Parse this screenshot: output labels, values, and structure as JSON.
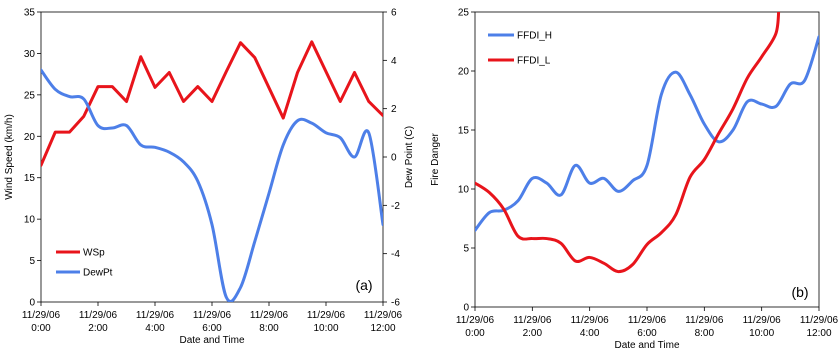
{
  "chart_data": [
    {
      "type": "line",
      "panel_label": "(a)",
      "xlabel": "Date and Time",
      "ylabel": "Wind Speed (km/h)",
      "y2label": "Dew Point (C)",
      "x_ticks": [
        {
          "hours": 0,
          "date": "11/29/06",
          "time": "0:00"
        },
        {
          "hours": 2,
          "date": "11/29/06",
          "time": "2:00"
        },
        {
          "hours": 4,
          "date": "11/29/06",
          "time": "4:00"
        },
        {
          "hours": 6,
          "date": "11/29/06",
          "time": "6:00"
        },
        {
          "hours": 8,
          "date": "11/29/06",
          "time": "8:00"
        },
        {
          "hours": 10,
          "date": "11/29/06",
          "time": "10:00"
        },
        {
          "hours": 12,
          "date": "11/29/06",
          "time": "12:00"
        }
      ],
      "xlim": [
        0,
        12
      ],
      "ylim": [
        0,
        35
      ],
      "y_ticks": [
        0,
        5,
        10,
        15,
        20,
        25,
        30,
        35
      ],
      "y2lim": [
        -6,
        6
      ],
      "y2_ticks": [
        -6,
        -4,
        -2,
        0,
        2,
        4,
        6
      ],
      "grid": false,
      "legend_position": "bottom-left",
      "series": [
        {
          "name": "WSp",
          "axis": "left",
          "color": "#e8141b",
          "smooth": false,
          "points": [
            [
              0,
              16.5
            ],
            [
              0.5,
              20.5
            ],
            [
              1,
              20.5
            ],
            [
              1.5,
              22.4
            ],
            [
              2,
              26
            ],
            [
              2.5,
              26
            ],
            [
              3,
              24.2
            ],
            [
              3.5,
              29.6
            ],
            [
              4,
              25.9
            ],
            [
              4.5,
              27.7
            ],
            [
              5,
              24.2
            ],
            [
              5.5,
              26
            ],
            [
              6,
              24.2
            ],
            [
              6.5,
              27.8
            ],
            [
              7,
              31.3
            ],
            [
              7.5,
              29.5
            ],
            [
              8.5,
              22.2
            ],
            [
              9,
              27.7
            ],
            [
              9.5,
              31.4
            ],
            [
              10.5,
              24.2
            ],
            [
              11,
              27.7
            ],
            [
              11.5,
              24.2
            ],
            [
              12,
              22.5
            ]
          ]
        },
        {
          "name": "DewPt",
          "axis": "right",
          "color": "#4d7fe8",
          "smooth": true,
          "points": [
            [
              0,
              3.6
            ],
            [
              0.5,
              2.8
            ],
            [
              1,
              2.5
            ],
            [
              1.5,
              2.4
            ],
            [
              2,
              1.3
            ],
            [
              2.5,
              1.2
            ],
            [
              3,
              1.3
            ],
            [
              3.5,
              0.5
            ],
            [
              4,
              0.4
            ],
            [
              4.5,
              0.2
            ],
            [
              5,
              -0.2
            ],
            [
              5.5,
              -1
            ],
            [
              6,
              -2.8
            ],
            [
              6.5,
              -5.8
            ],
            [
              7,
              -5.4
            ],
            [
              7.5,
              -3.5
            ],
            [
              8,
              -1.5
            ],
            [
              8.5,
              0.5
            ],
            [
              9,
              1.5
            ],
            [
              9.5,
              1.4
            ],
            [
              10,
              1
            ],
            [
              10.5,
              0.8
            ],
            [
              11,
              0
            ],
            [
              11.5,
              1
            ],
            [
              12,
              -2.8
            ]
          ]
        }
      ]
    },
    {
      "type": "line",
      "panel_label": "(b)",
      "xlabel": "Date and Time",
      "ylabel": "Fire Danger",
      "x_ticks": [
        {
          "hours": 0,
          "date": "11/29/06",
          "time": "0:00"
        },
        {
          "hours": 2,
          "date": "11/29/06",
          "time": "2:00"
        },
        {
          "hours": 4,
          "date": "11/29/06",
          "time": "4:00"
        },
        {
          "hours": 6,
          "date": "11/29/06",
          "time": "6:00"
        },
        {
          "hours": 8,
          "date": "11/29/06",
          "time": "8:00"
        },
        {
          "hours": 10,
          "date": "11/29/06",
          "time": "10:00"
        },
        {
          "hours": 12,
          "date": "11/29/06",
          "time": "12:00"
        }
      ],
      "xlim": [
        0,
        12
      ],
      "ylim": [
        0,
        25
      ],
      "y_ticks": [
        0,
        5,
        10,
        15,
        20,
        25
      ],
      "grid": false,
      "legend_position": "top-left",
      "series": [
        {
          "name": "FFDI_H",
          "color": "#4d7fe8",
          "smooth": true,
          "points": [
            [
              0,
              6.5
            ],
            [
              0.5,
              8
            ],
            [
              1,
              8.2
            ],
            [
              1.5,
              9
            ],
            [
              2,
              10.9
            ],
            [
              2.5,
              10.5
            ],
            [
              3,
              9.5
            ],
            [
              3.5,
              12
            ],
            [
              4,
              10.5
            ],
            [
              4.5,
              10.9
            ],
            [
              5,
              9.8
            ],
            [
              5.5,
              10.7
            ],
            [
              6,
              12
            ],
            [
              6.5,
              18
            ],
            [
              7,
              19.9
            ],
            [
              7.5,
              18
            ],
            [
              8,
              15.5
            ],
            [
              8.5,
              14
            ],
            [
              9,
              15
            ],
            [
              9.5,
              17.4
            ],
            [
              10,
              17.2
            ],
            [
              10.5,
              17
            ],
            [
              11,
              18.9
            ],
            [
              11.5,
              19.2
            ],
            [
              12,
              22.9
            ]
          ]
        },
        {
          "name": "FFDI_L",
          "color": "#e8141b",
          "smooth": true,
          "points": [
            [
              0,
              10.5
            ],
            [
              0.5,
              9.7
            ],
            [
              1,
              8.3
            ],
            [
              1.5,
              6
            ],
            [
              2,
              5.8
            ],
            [
              2.5,
              5.8
            ],
            [
              3,
              5.4
            ],
            [
              3.5,
              3.9
            ],
            [
              4,
              4.2
            ],
            [
              4.5,
              3.7
            ],
            [
              5,
              3
            ],
            [
              5.5,
              3.6
            ],
            [
              6,
              5.3
            ],
            [
              6.5,
              6.3
            ],
            [
              7,
              7.8
            ],
            [
              7.5,
              11
            ],
            [
              8,
              12.5
            ],
            [
              8.5,
              14.7
            ],
            [
              9,
              16.8
            ],
            [
              9.5,
              19.4
            ],
            [
              10,
              21.2
            ],
            [
              10.5,
              23.2
            ],
            [
              10.6,
              25.5
            ]
          ]
        }
      ]
    }
  ]
}
